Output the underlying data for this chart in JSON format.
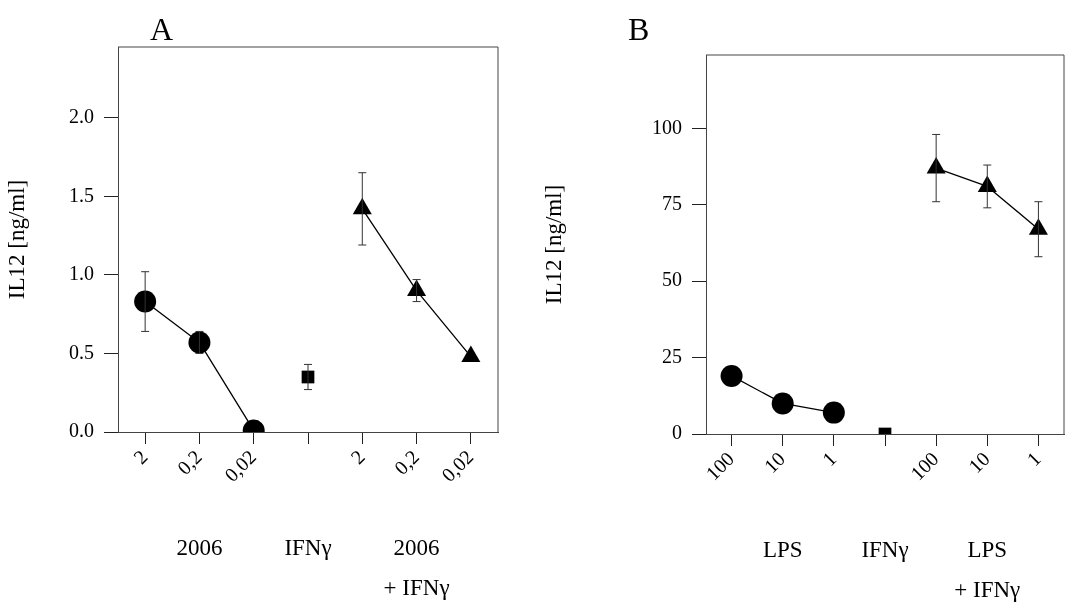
{
  "chart_data": [
    {
      "type": "line",
      "title": "A",
      "ylabel": "IL12 [ng/ml]",
      "categories": [
        "2",
        "0,2",
        "0,02",
        null,
        "2",
        "0,2",
        "0,02"
      ],
      "series": [
        {
          "color": "#000000",
          "marker": "circle",
          "values": [
            0.83,
            0.57,
            0.01,
            null,
            null,
            null,
            null
          ],
          "errors": [
            0.19,
            0.07,
            null,
            null,
            null,
            null,
            null
          ]
        },
        {
          "type": "scatter",
          "color": "#000000",
          "marker": "square",
          "values": [
            null,
            null,
            null,
            0.35,
            null,
            null,
            null
          ],
          "errors": [
            null,
            null,
            null,
            0.08,
            null,
            null,
            null
          ]
        },
        {
          "color": "#000000",
          "marker": "triangle",
          "values": [
            null,
            null,
            null,
            null,
            1.42,
            0.9,
            0.48
          ],
          "errors": [
            null,
            null,
            null,
            null,
            0.23,
            0.07,
            null
          ]
        }
      ],
      "ylim": [
        0,
        2.45
      ],
      "yticks": [
        {
          "value": 0,
          "label": "0.0"
        },
        {
          "value": 0.5,
          "label": "0.5"
        },
        {
          "value": 1,
          "label": "1.0"
        },
        {
          "value": 1.5,
          "label": "1.5"
        },
        {
          "value": 2,
          "label": "2.0"
        }
      ],
      "annotations": [
        "2006",
        "IFNγ",
        "2006\n+ IFNγ"
      ],
      "grid": false,
      "legend": false,
      "line_style": "solid"
    },
    {
      "type": "line",
      "title": "B",
      "ylabel": "IL12 [ng/ml]",
      "categories": [
        "100",
        "10",
        "1",
        null,
        "100",
        "10",
        "1"
      ],
      "series": [
        {
          "color": "#000000",
          "marker": "circle",
          "values": [
            19,
            10,
            7,
            null,
            null,
            null,
            null
          ]
        },
        {
          "type": "scatter",
          "color": "#000000",
          "marker": "square",
          "values": [
            null,
            null,
            null,
            0,
            null,
            null,
            null
          ]
        },
        {
          "color": "#000000",
          "marker": "triangle",
          "values": [
            null,
            null,
            null,
            null,
            87,
            81,
            67
          ],
          "errors": [
            null,
            null,
            null,
            null,
            11,
            7,
            9
          ]
        }
      ],
      "ylim": [
        0,
        124
      ],
      "yticks": [
        0,
        25,
        50,
        75,
        100
      ],
      "annotations": [
        "LPS",
        "IFNγ",
        "LPS\n+ IFNγ"
      ],
      "grid": false,
      "legend": false,
      "line_style": "solid"
    }
  ]
}
